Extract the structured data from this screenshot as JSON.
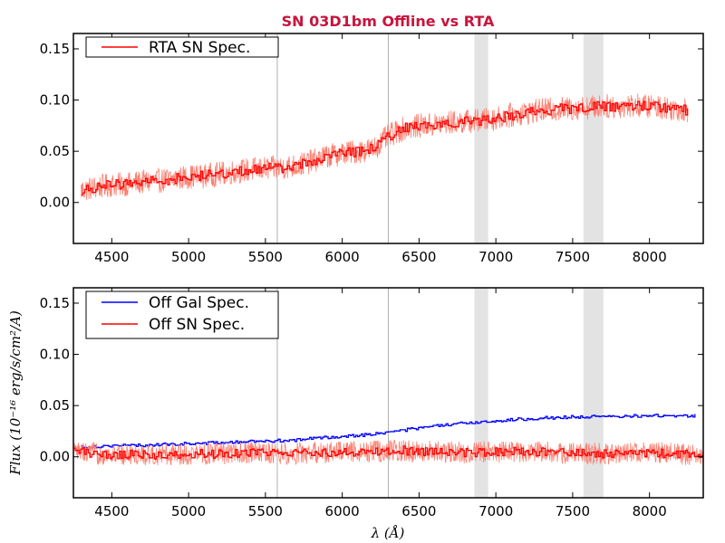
{
  "chart_data": [
    {
      "type": "line",
      "title": "SN 03D1bm Offline vs RTA",
      "xlim": [
        4250,
        8350
      ],
      "ylim": [
        -0.04,
        0.165
      ],
      "xticks": [
        4500,
        5000,
        5500,
        6000,
        6500,
        7000,
        7500,
        8000
      ],
      "xticklabels": [
        "4500",
        "5000",
        "5500",
        "6000",
        "6500",
        "7000",
        "7500",
        "8000"
      ],
      "yticks": [
        0.0,
        0.05,
        0.1,
        0.15
      ],
      "yticklabels": [
        "0.00",
        "0.05",
        "0.10",
        "0.15"
      ],
      "vlines": [
        5577,
        6300
      ],
      "bands": [
        [
          6860,
          6950
        ],
        [
          7570,
          7700
        ]
      ],
      "xlabel": "",
      "ylabel": "",
      "legend": [
        "RTA SN Spec."
      ],
      "series": [
        {
          "name": "RTA SN Spec.",
          "color": "#ff0000",
          "x": [
            4300,
            4400,
            4500,
            4600,
            4700,
            4800,
            4900,
            5000,
            5100,
            5200,
            5300,
            5400,
            5500,
            5600,
            5700,
            5800,
            5900,
            6000,
            6100,
            6200,
            6300,
            6400,
            6500,
            6600,
            6700,
            6800,
            6900,
            7000,
            7100,
            7200,
            7300,
            7400,
            7500,
            7600,
            7700,
            7800,
            7900,
            8000,
            8100,
            8250
          ],
          "y": [
            0.012,
            0.015,
            0.017,
            0.018,
            0.02,
            0.021,
            0.023,
            0.025,
            0.026,
            0.028,
            0.03,
            0.032,
            0.033,
            0.034,
            0.036,
            0.04,
            0.045,
            0.048,
            0.05,
            0.052,
            0.065,
            0.072,
            0.075,
            0.076,
            0.078,
            0.079,
            0.08,
            0.082,
            0.085,
            0.088,
            0.09,
            0.091,
            0.092,
            0.093,
            0.094,
            0.094,
            0.095,
            0.094,
            0.093,
            0.09
          ],
          "noise": 0.01
        }
      ]
    },
    {
      "type": "line",
      "title": "",
      "xlim": [
        4250,
        8350
      ],
      "ylim": [
        -0.04,
        0.165
      ],
      "xticks": [
        4500,
        5000,
        5500,
        6000,
        6500,
        7000,
        7500,
        8000
      ],
      "xticklabels": [
        "4500",
        "5000",
        "5500",
        "6000",
        "6500",
        "7000",
        "7500",
        "8000"
      ],
      "yticks": [
        0.0,
        0.05,
        0.1,
        0.15
      ],
      "yticklabels": [
        "0.00",
        "0.05",
        "0.10",
        "0.15"
      ],
      "vlines": [
        5577,
        6300
      ],
      "bands": [
        [
          6860,
          6950
        ],
        [
          7570,
          7700
        ]
      ],
      "xlabel": "λ (Å)",
      "ylabel": "Flux (10⁻¹⁶ erg/s/cm²/A)",
      "legend": [
        "Off Gal Spec.",
        "Off SN Spec."
      ],
      "series": [
        {
          "name": "Off Gal Spec.",
          "color": "#0000ff",
          "x": [
            4300,
            4400,
            4500,
            4600,
            4700,
            4800,
            4900,
            5000,
            5100,
            5200,
            5300,
            5400,
            5500,
            5600,
            5700,
            5800,
            5900,
            6000,
            6100,
            6200,
            6300,
            6400,
            6500,
            6600,
            6700,
            6800,
            6900,
            7000,
            7100,
            7200,
            7300,
            7400,
            7500,
            7600,
            7700,
            7800,
            7900,
            8000,
            8100,
            8300
          ],
          "y": [
            0.01,
            0.01,
            0.011,
            0.011,
            0.011,
            0.012,
            0.012,
            0.013,
            0.013,
            0.014,
            0.014,
            0.015,
            0.015,
            0.016,
            0.016,
            0.018,
            0.019,
            0.02,
            0.021,
            0.022,
            0.024,
            0.026,
            0.028,
            0.03,
            0.031,
            0.033,
            0.034,
            0.035,
            0.036,
            0.037,
            0.038,
            0.038,
            0.039,
            0.039,
            0.039,
            0.039,
            0.04,
            0.04,
            0.04,
            0.04
          ],
          "noise": 0.003
        },
        {
          "name": "Off SN Spec.",
          "color": "#ff0000",
          "x": [
            4250,
            4400,
            4600,
            4800,
            5000,
            5200,
            5400,
            5600,
            5800,
            6000,
            6200,
            6400,
            6600,
            6800,
            7000,
            7200,
            7400,
            7600,
            7800,
            8000,
            8200,
            8350
          ],
          "y": [
            0.005,
            0.003,
            0.002,
            0.002,
            0.003,
            0.003,
            0.004,
            0.003,
            0.004,
            0.005,
            0.005,
            0.006,
            0.005,
            0.004,
            0.005,
            0.005,
            0.004,
            0.003,
            0.003,
            0.004,
            0.003,
            0.002
          ],
          "noise": 0.009
        }
      ]
    }
  ]
}
